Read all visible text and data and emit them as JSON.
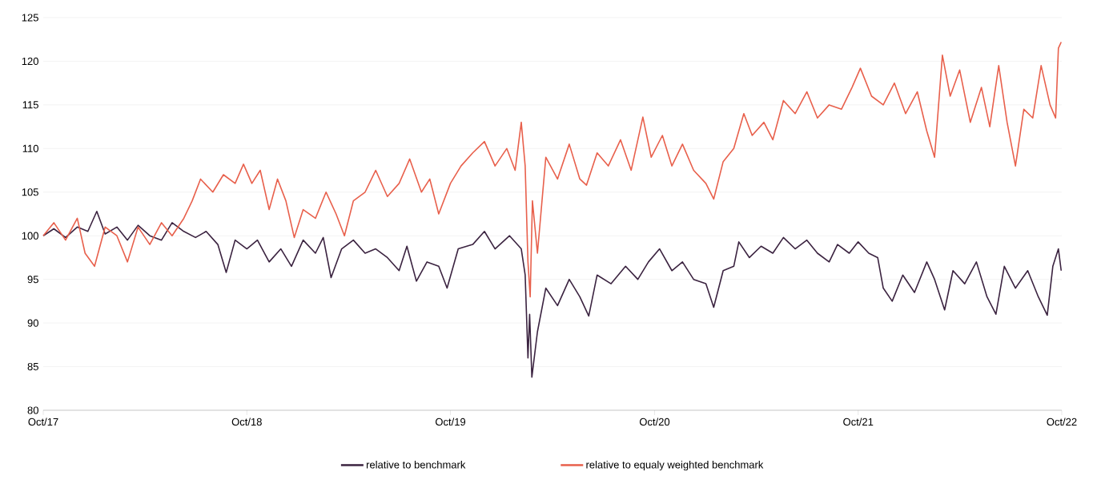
{
  "chart_data": {
    "type": "line",
    "xlim": [
      "2017-10",
      "2022-10"
    ],
    "xticks": [
      {
        "value": "2017-10",
        "label": "Oct/17"
      },
      {
        "value": "2018-10",
        "label": "Oct/18"
      },
      {
        "value": "2019-10",
        "label": "Oct/19"
      },
      {
        "value": "2020-10",
        "label": "Oct/20"
      },
      {
        "value": "2021-10",
        "label": "Oct/21"
      },
      {
        "value": "2022-10",
        "label": "Oct/22"
      }
    ],
    "ylim": [
      80,
      125
    ],
    "yticks": [
      80,
      85,
      90,
      95,
      100,
      105,
      110,
      115,
      120,
      125
    ],
    "grid": "y",
    "legend": "bottom",
    "line_style": "solid",
    "marker": "none",
    "series": [
      {
        "name": "relative to benchmark",
        "color": "#3b2340",
        "x": [
          "2017-10-01",
          "2017-10-20",
          "2017-11-10",
          "2017-12-01",
          "2017-12-20",
          "2018-01-05",
          "2018-01-20",
          "2018-02-10",
          "2018-03-01",
          "2018-03-20",
          "2018-04-10",
          "2018-05-01",
          "2018-05-20",
          "2018-06-10",
          "2018-07-01",
          "2018-07-20",
          "2018-08-10",
          "2018-08-25",
          "2018-09-10",
          "2018-10-01",
          "2018-10-20",
          "2018-11-10",
          "2018-12-01",
          "2018-12-20",
          "2019-01-10",
          "2019-02-01",
          "2019-02-15",
          "2019-03-01",
          "2019-03-20",
          "2019-04-10",
          "2019-05-01",
          "2019-05-20",
          "2019-06-10",
          "2019-07-01",
          "2019-07-15",
          "2019-08-01",
          "2019-08-20",
          "2019-09-10",
          "2019-09-25",
          "2019-10-15",
          "2019-11-10",
          "2019-12-01",
          "2019-12-20",
          "2020-01-15",
          "2020-02-05",
          "2020-02-12",
          "2020-02-17",
          "2020-02-20",
          "2020-02-24",
          "2020-03-05",
          "2020-03-20",
          "2020-04-10",
          "2020-05-01",
          "2020-05-20",
          "2020-06-05",
          "2020-06-20",
          "2020-07-15",
          "2020-08-10",
          "2020-09-01",
          "2020-09-20",
          "2020-10-10",
          "2020-11-01",
          "2020-11-20",
          "2020-12-10",
          "2021-01-01",
          "2021-01-15",
          "2021-02-01",
          "2021-02-20",
          "2021-03-01",
          "2021-03-20",
          "2021-04-10",
          "2021-05-01",
          "2021-05-20",
          "2021-06-10",
          "2021-07-01",
          "2021-07-20",
          "2021-08-10",
          "2021-08-25",
          "2021-09-15",
          "2021-10-01",
          "2021-10-20",
          "2021-11-05",
          "2021-11-15",
          "2021-12-01",
          "2021-12-20",
          "2022-01-10",
          "2022-02-01",
          "2022-02-15",
          "2022-03-05",
          "2022-03-20",
          "2022-04-10",
          "2022-05-01",
          "2022-05-20",
          "2022-06-05",
          "2022-06-20",
          "2022-07-10",
          "2022-08-01",
          "2022-08-20",
          "2022-09-05",
          "2022-09-15",
          "2022-09-25",
          "2022-09-30"
        ],
        "values": [
          100,
          100.8,
          99.8,
          101,
          100.5,
          102.8,
          100.2,
          101,
          99.5,
          101.2,
          100,
          99.5,
          101.5,
          100.5,
          99.8,
          100.5,
          99,
          95.8,
          99.5,
          98.5,
          99.5,
          97,
          98.5,
          96.5,
          99.5,
          98,
          99.8,
          95.2,
          98.5,
          99.5,
          98,
          98.5,
          97.5,
          96,
          98.8,
          94.8,
          97,
          96.5,
          94,
          98.5,
          99,
          100.5,
          98.5,
          100,
          98.5,
          95.5,
          86,
          91,
          83.8,
          89,
          94,
          92,
          95,
          93,
          90.8,
          95.5,
          94.5,
          96.5,
          95,
          97,
          98.5,
          96,
          97,
          95,
          94.5,
          91.8,
          96,
          96.5,
          99.3,
          97.5,
          98.8,
          98,
          99.8,
          98.5,
          99.5,
          98,
          97,
          99,
          98,
          99.3,
          98,
          97.5,
          94,
          92.5,
          95.5,
          93.5,
          97,
          95,
          91.5,
          96,
          94.5,
          97,
          93,
          91,
          96.5,
          94,
          96,
          93,
          90.9,
          96.5,
          98.5,
          96
        ]
      },
      {
        "name": "relative to equaly weighted benchmark",
        "color": "#e8604c",
        "x": [
          "2017-10-01",
          "2017-10-20",
          "2017-11-10",
          "2017-12-01",
          "2017-12-15",
          "2018-01-01",
          "2018-01-20",
          "2018-02-10",
          "2018-03-01",
          "2018-03-20",
          "2018-04-10",
          "2018-05-01",
          "2018-05-20",
          "2018-06-10",
          "2018-06-25",
          "2018-07-10",
          "2018-08-01",
          "2018-08-20",
          "2018-09-10",
          "2018-09-25",
          "2018-10-10",
          "2018-10-25",
          "2018-11-10",
          "2018-11-25",
          "2018-12-10",
          "2018-12-25",
          "2019-01-10",
          "2019-02-01",
          "2019-02-20",
          "2019-03-10",
          "2019-03-25",
          "2019-04-10",
          "2019-05-01",
          "2019-05-20",
          "2019-06-10",
          "2019-07-01",
          "2019-07-20",
          "2019-08-10",
          "2019-08-25",
          "2019-09-10",
          "2019-10-01",
          "2019-10-20",
          "2019-11-10",
          "2019-12-01",
          "2019-12-20",
          "2020-01-10",
          "2020-01-25",
          "2020-02-05",
          "2020-02-12",
          "2020-02-17",
          "2020-02-21",
          "2020-02-25",
          "2020-03-05",
          "2020-03-20",
          "2020-04-10",
          "2020-05-01",
          "2020-05-20",
          "2020-06-01",
          "2020-06-20",
          "2020-07-10",
          "2020-08-01",
          "2020-08-20",
          "2020-09-10",
          "2020-09-25",
          "2020-10-15",
          "2020-11-01",
          "2020-11-20",
          "2020-12-10",
          "2021-01-01",
          "2021-01-15",
          "2021-02-01",
          "2021-02-20",
          "2021-03-10",
          "2021-03-25",
          "2021-04-15",
          "2021-05-01",
          "2021-05-20",
          "2021-06-10",
          "2021-07-01",
          "2021-07-20",
          "2021-08-10",
          "2021-09-01",
          "2021-09-20",
          "2021-10-05",
          "2021-10-25",
          "2021-11-15",
          "2021-12-05",
          "2021-12-25",
          "2022-01-15",
          "2022-02-01",
          "2022-02-15",
          "2022-03-01",
          "2022-03-15",
          "2022-04-01",
          "2022-04-20",
          "2022-05-10",
          "2022-05-25",
          "2022-06-10",
          "2022-06-25",
          "2022-07-10",
          "2022-07-25",
          "2022-08-10",
          "2022-08-25",
          "2022-09-10",
          "2022-09-20",
          "2022-09-25",
          "2022-09-30"
        ],
        "values": [
          100,
          101.5,
          99.5,
          102,
          98,
          96.5,
          101,
          100,
          97,
          101,
          99,
          101.5,
          100,
          102,
          104,
          106.5,
          105,
          107,
          106,
          108.2,
          106,
          107.5,
          103,
          106.5,
          104,
          99.8,
          103,
          102,
          105,
          102.5,
          100,
          104,
          105,
          107.5,
          104.5,
          106,
          108.8,
          105,
          106.5,
          102.5,
          106,
          108,
          109.5,
          110.8,
          108,
          110,
          107.5,
          113,
          108,
          97,
          93,
          104,
          98,
          109,
          106.5,
          110.5,
          106.5,
          105.8,
          109.5,
          108,
          111,
          107.5,
          113.6,
          109,
          111.5,
          108,
          110.5,
          107.5,
          106,
          104.2,
          108.5,
          110,
          114,
          111.5,
          113,
          111,
          115.5,
          114,
          116.5,
          113.5,
          115,
          114.5,
          117,
          119.2,
          116,
          115,
          117.5,
          114,
          116.5,
          112,
          109,
          120.7,
          116,
          119,
          113,
          117,
          112.5,
          119.5,
          113,
          108,
          114.5,
          113.5,
          119.5,
          115,
          113.5,
          121.5,
          122.2
        ]
      }
    ]
  }
}
